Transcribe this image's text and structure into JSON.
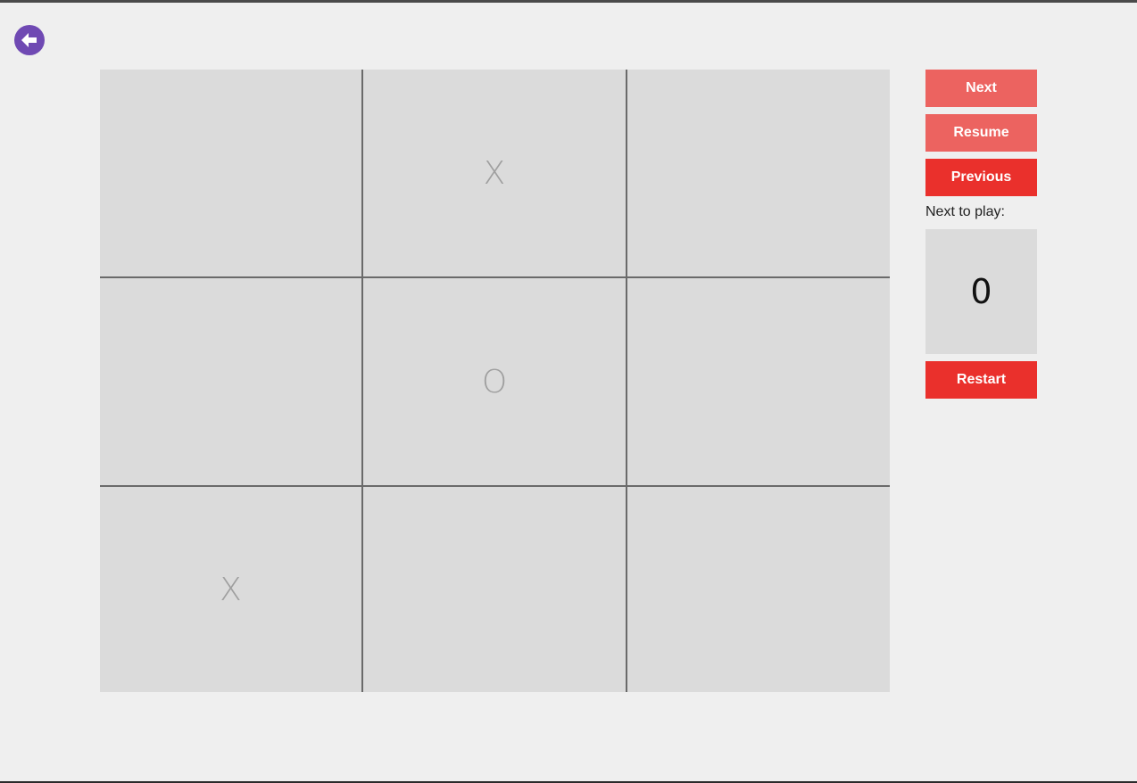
{
  "colors": {
    "background": "#efefef",
    "board": "#dbdbdb",
    "grid_line": "#6a6a6a",
    "mark": "#9f9f9f",
    "button_light": "#ec6360",
    "button_strong": "#ea302c",
    "back_button": "#6f49b3"
  },
  "nav": {
    "back_icon": "arrow-left-icon"
  },
  "board": {
    "cells": [
      "",
      "X",
      "",
      "",
      "O",
      "",
      "X",
      "",
      ""
    ]
  },
  "controls": {
    "next_label": "Next",
    "resume_label": "Resume",
    "previous_label": "Previous",
    "next_to_play_label": "Next to play:",
    "next_to_play_value": "0",
    "restart_label": "Restart"
  }
}
